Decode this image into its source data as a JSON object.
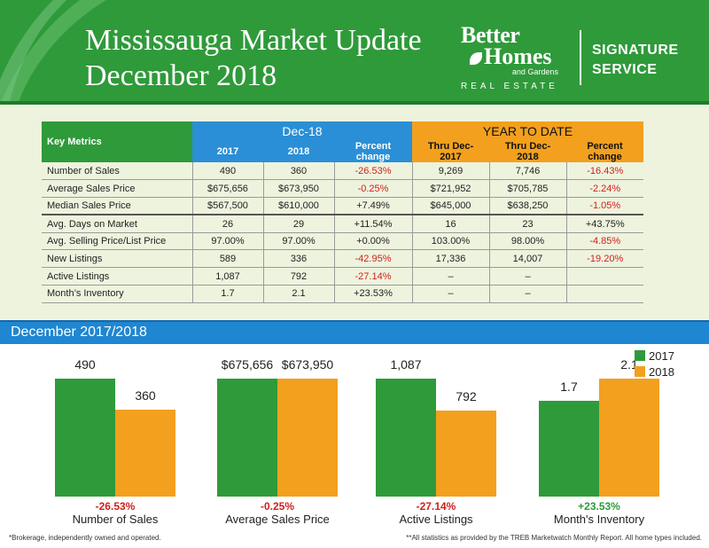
{
  "header": {
    "title_line1": "Mississauga Market Update",
    "title_line2": "December 2018",
    "brand_line1": "Better",
    "brand_line2": "Homes",
    "brand_line3": "and Gardens",
    "brand_line4": "REAL ESTATE",
    "signature_line1": "SIGNATURE",
    "signature_line2": "SERVICE",
    "colors": {
      "green": "#2f9a3a",
      "blue": "#2a8fd6",
      "orange": "#f2a01e",
      "red": "#d0211c"
    }
  },
  "table": {
    "key_metrics_label": "Key Metrics",
    "group_dec": "Dec-18",
    "group_ytd": "YEAR TO DATE",
    "sub_headers": [
      "2017",
      "2018",
      "Percent change",
      "Thru Dec-2017",
      "Thru Dec-2018",
      "Percent change"
    ],
    "rows": [
      {
        "label": "Number of Sales",
        "v2017": "490",
        "v2018": "360",
        "pct": "-26.53%",
        "ytd2017": "9,269",
        "ytd2018": "7,746",
        "ytdpct": "-16.43%"
      },
      {
        "label": "Average Sales Price",
        "v2017": "$675,656",
        "v2018": "$673,950",
        "pct": "-0.25%",
        "ytd2017": "$721,952",
        "ytd2018": "$705,785",
        "ytdpct": "-2.24%"
      },
      {
        "label": "Median Sales Price",
        "v2017": "$567,500",
        "v2018": "$610,000",
        "pct": "+7.49%",
        "ytd2017": "$645,000",
        "ytd2018": "$638,250",
        "ytdpct": "-1.05%"
      },
      {
        "label": "Avg. Days on Market",
        "v2017": "26",
        "v2018": "29",
        "pct": "+11.54%",
        "ytd2017": "16",
        "ytd2018": "23",
        "ytdpct": "+43.75%"
      },
      {
        "label": "Avg. Selling Price/List Price",
        "v2017": "97.00%",
        "v2018": "97.00%",
        "pct": "+0.00%",
        "ytd2017": "103.00%",
        "ytd2018": "98.00%",
        "ytdpct": "-4.85%"
      },
      {
        "label": "New Listings",
        "v2017": "589",
        "v2018": "336",
        "pct": "-42.95%",
        "ytd2017": "17,336",
        "ytd2018": "14,007",
        "ytdpct": "-19.20%"
      },
      {
        "label": "Active Listings",
        "v2017": "1,087",
        "v2018": "792",
        "pct": "-27.14%",
        "ytd2017": "–",
        "ytd2018": "–",
        "ytdpct": ""
      },
      {
        "label": "Month’s Inventory",
        "v2017": "1.7",
        "v2018": "2.1",
        "pct": "+23.53%",
        "ytd2017": "–",
        "ytd2018": "–",
        "ytdpct": ""
      }
    ]
  },
  "section_title": "December 2017/2018",
  "chart_data": {
    "type": "bar",
    "categories": [
      "Number of Sales",
      "Average Sales Price",
      "Active Listings",
      "Month's Inventory"
    ],
    "series": [
      {
        "name": "2017",
        "color": "#2f9a3a",
        "values": [
          490,
          675656,
          1087,
          1.7
        ],
        "labels": [
          "490",
          "$675,656",
          "1,087",
          "1.7"
        ]
      },
      {
        "name": "2018",
        "color": "#f2a01e",
        "values": [
          360,
          673950,
          792,
          2.1
        ],
        "labels": [
          "360",
          "$673,950",
          "792",
          "2.1"
        ]
      }
    ],
    "percent_changes": [
      "-26.53%",
      "-0.25%",
      "-27.14%",
      "+23.53%"
    ],
    "percent_colors": [
      "#d0211c",
      "#d0211c",
      "#d0211c",
      "#2f9a3a"
    ],
    "legend": [
      "2017",
      "2018"
    ],
    "legend_position": "top-right"
  },
  "footer": {
    "left": "*Brokerage, independently owned and operated.",
    "right": "**All statistics as provided by the TREB Marketwatch Monthly Report. All home types included."
  }
}
